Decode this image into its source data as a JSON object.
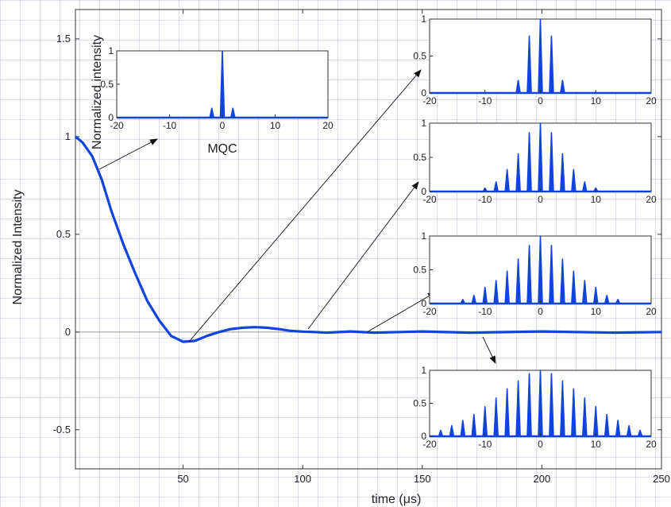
{
  "chart_data": [
    {
      "type": "line",
      "xlabel": "time (μs)",
      "ylabel": "Normalized Intensity",
      "xlim": [
        5,
        250
      ],
      "ylim": [
        -0.7,
        1.65
      ],
      "xticks": [
        "50",
        "100",
        "150",
        "200",
        "250"
      ],
      "yticks": [
        "-0.5",
        "0",
        "0.5",
        "1",
        "1.5"
      ],
      "grid": false,
      "reference_line": 0,
      "series": [
        {
          "x": [
            5,
            8,
            12,
            16,
            20,
            25,
            30,
            35,
            40,
            45,
            50,
            55,
            60,
            65,
            70,
            75,
            80,
            85,
            90,
            95,
            100,
            105,
            110,
            120,
            130,
            150,
            170,
            200,
            230,
            250
          ],
          "y": [
            1.0,
            0.97,
            0.9,
            0.78,
            0.62,
            0.45,
            0.3,
            0.16,
            0.06,
            -0.02,
            -0.05,
            -0.045,
            -0.02,
            0.0,
            0.015,
            0.022,
            0.025,
            0.022,
            0.015,
            0.006,
            0.002,
            0.0,
            -0.003,
            0.003,
            -0.003,
            0.003,
            -0.003,
            0.003,
            -0.003,
            0.0
          ],
          "color": "#1144dd"
        }
      ]
    },
    {
      "type": "bar",
      "ylabel": "Normalized intensity",
      "title": "MQC",
      "xlim": [
        -20,
        20
      ],
      "ylim": [
        0,
        1
      ],
      "xticks": [
        "-20",
        "-10",
        "0",
        "10",
        "20"
      ],
      "yticks": [
        "0",
        "0.5",
        "1"
      ],
      "points": [
        {
          "x": -2,
          "y": 0.14
        },
        {
          "x": 0,
          "y": 1.0
        },
        {
          "x": 2,
          "y": 0.14
        }
      ],
      "color": "#1144dd"
    },
    {
      "type": "bar",
      "xlim": [
        -20,
        20
      ],
      "ylim": [
        0,
        1
      ],
      "xticks": [
        "-20",
        "-10",
        "0",
        "10",
        "20"
      ],
      "yticks": [
        "0",
        "0.5",
        "1"
      ],
      "points": [
        {
          "x": -4,
          "y": 0.17
        },
        {
          "x": -2,
          "y": 0.77
        },
        {
          "x": 0,
          "y": 1.0
        },
        {
          "x": 2,
          "y": 0.77
        },
        {
          "x": 4,
          "y": 0.17
        }
      ],
      "color": "#1144dd"
    },
    {
      "type": "bar",
      "xlim": [
        -20,
        20
      ],
      "ylim": [
        0,
        1
      ],
      "xticks": [
        "-20",
        "-10",
        "0",
        "10",
        "20"
      ],
      "yticks": [
        "0",
        "0.5",
        "1"
      ],
      "points": [
        {
          "x": -10,
          "y": 0.05
        },
        {
          "x": -8,
          "y": 0.14
        },
        {
          "x": -6,
          "y": 0.32
        },
        {
          "x": -4,
          "y": 0.55
        },
        {
          "x": -2,
          "y": 0.86
        },
        {
          "x": 0,
          "y": 1.0
        },
        {
          "x": 2,
          "y": 0.86
        },
        {
          "x": 4,
          "y": 0.55
        },
        {
          "x": 6,
          "y": 0.32
        },
        {
          "x": 8,
          "y": 0.14
        },
        {
          "x": 10,
          "y": 0.05
        }
      ],
      "color": "#1144dd"
    },
    {
      "type": "bar",
      "xlim": [
        -20,
        20
      ],
      "ylim": [
        0,
        1
      ],
      "xticks": [
        "-20",
        "-10",
        "0",
        "10",
        "20"
      ],
      "yticks": [
        "0",
        "0.5",
        "1"
      ],
      "points": [
        {
          "x": -14,
          "y": 0.06
        },
        {
          "x": -12,
          "y": 0.12
        },
        {
          "x": -10,
          "y": 0.24
        },
        {
          "x": -8,
          "y": 0.34
        },
        {
          "x": -6,
          "y": 0.48
        },
        {
          "x": -4,
          "y": 0.66
        },
        {
          "x": -2,
          "y": 0.86
        },
        {
          "x": 0,
          "y": 1.0
        },
        {
          "x": 2,
          "y": 0.86
        },
        {
          "x": 4,
          "y": 0.66
        },
        {
          "x": 6,
          "y": 0.48
        },
        {
          "x": 8,
          "y": 0.34
        },
        {
          "x": 10,
          "y": 0.24
        },
        {
          "x": 12,
          "y": 0.12
        },
        {
          "x": 14,
          "y": 0.06
        }
      ],
      "color": "#1144dd"
    },
    {
      "type": "bar",
      "xlim": [
        -20,
        20
      ],
      "ylim": [
        0,
        1
      ],
      "xticks": [
        "-20",
        "-10",
        "0",
        "10",
        "20"
      ],
      "yticks": [
        "0",
        "0.5",
        "1"
      ],
      "points": [
        {
          "x": -18,
          "y": 0.09
        },
        {
          "x": -16,
          "y": 0.16
        },
        {
          "x": -14,
          "y": 0.24
        },
        {
          "x": -12,
          "y": 0.33
        },
        {
          "x": -10,
          "y": 0.45
        },
        {
          "x": -8,
          "y": 0.58
        },
        {
          "x": -6,
          "y": 0.72
        },
        {
          "x": -4,
          "y": 0.84
        },
        {
          "x": -2,
          "y": 0.95
        },
        {
          "x": 0,
          "y": 1.0
        },
        {
          "x": 2,
          "y": 0.95
        },
        {
          "x": 4,
          "y": 0.84
        },
        {
          "x": 6,
          "y": 0.72
        },
        {
          "x": 8,
          "y": 0.58
        },
        {
          "x": 10,
          "y": 0.45
        },
        {
          "x": 12,
          "y": 0.33
        },
        {
          "x": 14,
          "y": 0.24
        },
        {
          "x": 16,
          "y": 0.16
        },
        {
          "x": 18,
          "y": 0.09
        }
      ],
      "color": "#1144dd"
    }
  ]
}
